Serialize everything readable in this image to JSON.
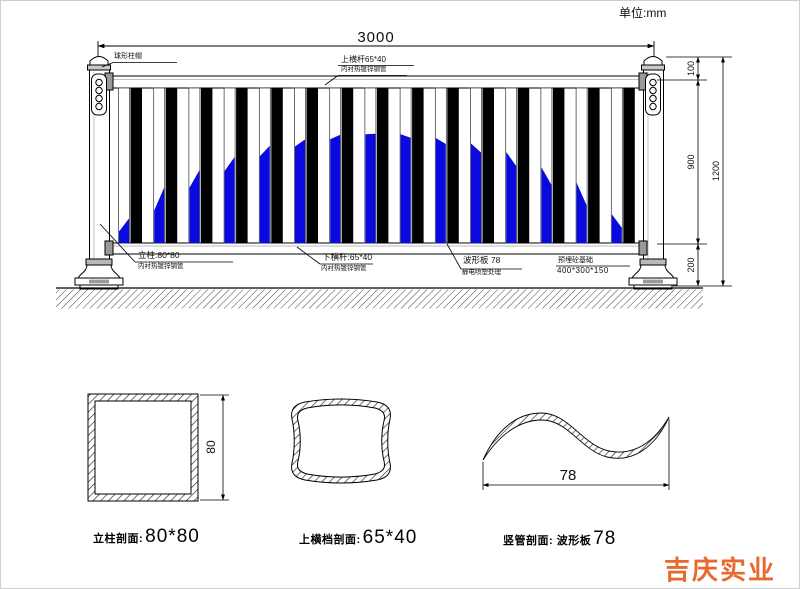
{
  "header": {
    "unit_label": "单位:mm"
  },
  "logo": {
    "text": "吉庆实业",
    "color": "#e8692c"
  },
  "main_drawing": {
    "dims": {
      "total_width": "3000",
      "seg_top": "100",
      "seg_mid": "900",
      "seg_bottom": "200",
      "total_height": "1200"
    },
    "annotations": {
      "post_cap": "球形柱帽",
      "top_rail_1": "上横杆65*40",
      "top_rail_2": "内衬热镀锌钢管",
      "post_1": "立柱:80*80",
      "post_2": "内衬热镀锌钢管",
      "bottom_rail_1": "下横杆:65*40",
      "bottom_rail_2": "内衬热镀锌钢管",
      "wave_1": "波形板 78",
      "wave_2": "静电喷塑处理",
      "foundation_1": "预埋砼基础",
      "foundation_2": "400*300*150"
    },
    "fence": {
      "blue": "#0a0ae0",
      "black": "#000000",
      "picket_count": 15,
      "wave_heights": [
        18,
        44,
        64,
        79,
        92,
        100,
        106,
        109,
        107,
        102,
        95,
        84,
        67,
        49,
        22
      ]
    }
  },
  "sections": {
    "post": {
      "prefix": "立柱剖面:",
      "value": "80*80",
      "dim": "80"
    },
    "rail": {
      "prefix": "上横档剖面:",
      "value": "65*40"
    },
    "wave": {
      "prefix": "竖管剖面: 波形板",
      "value": "78",
      "dim": "78"
    }
  }
}
